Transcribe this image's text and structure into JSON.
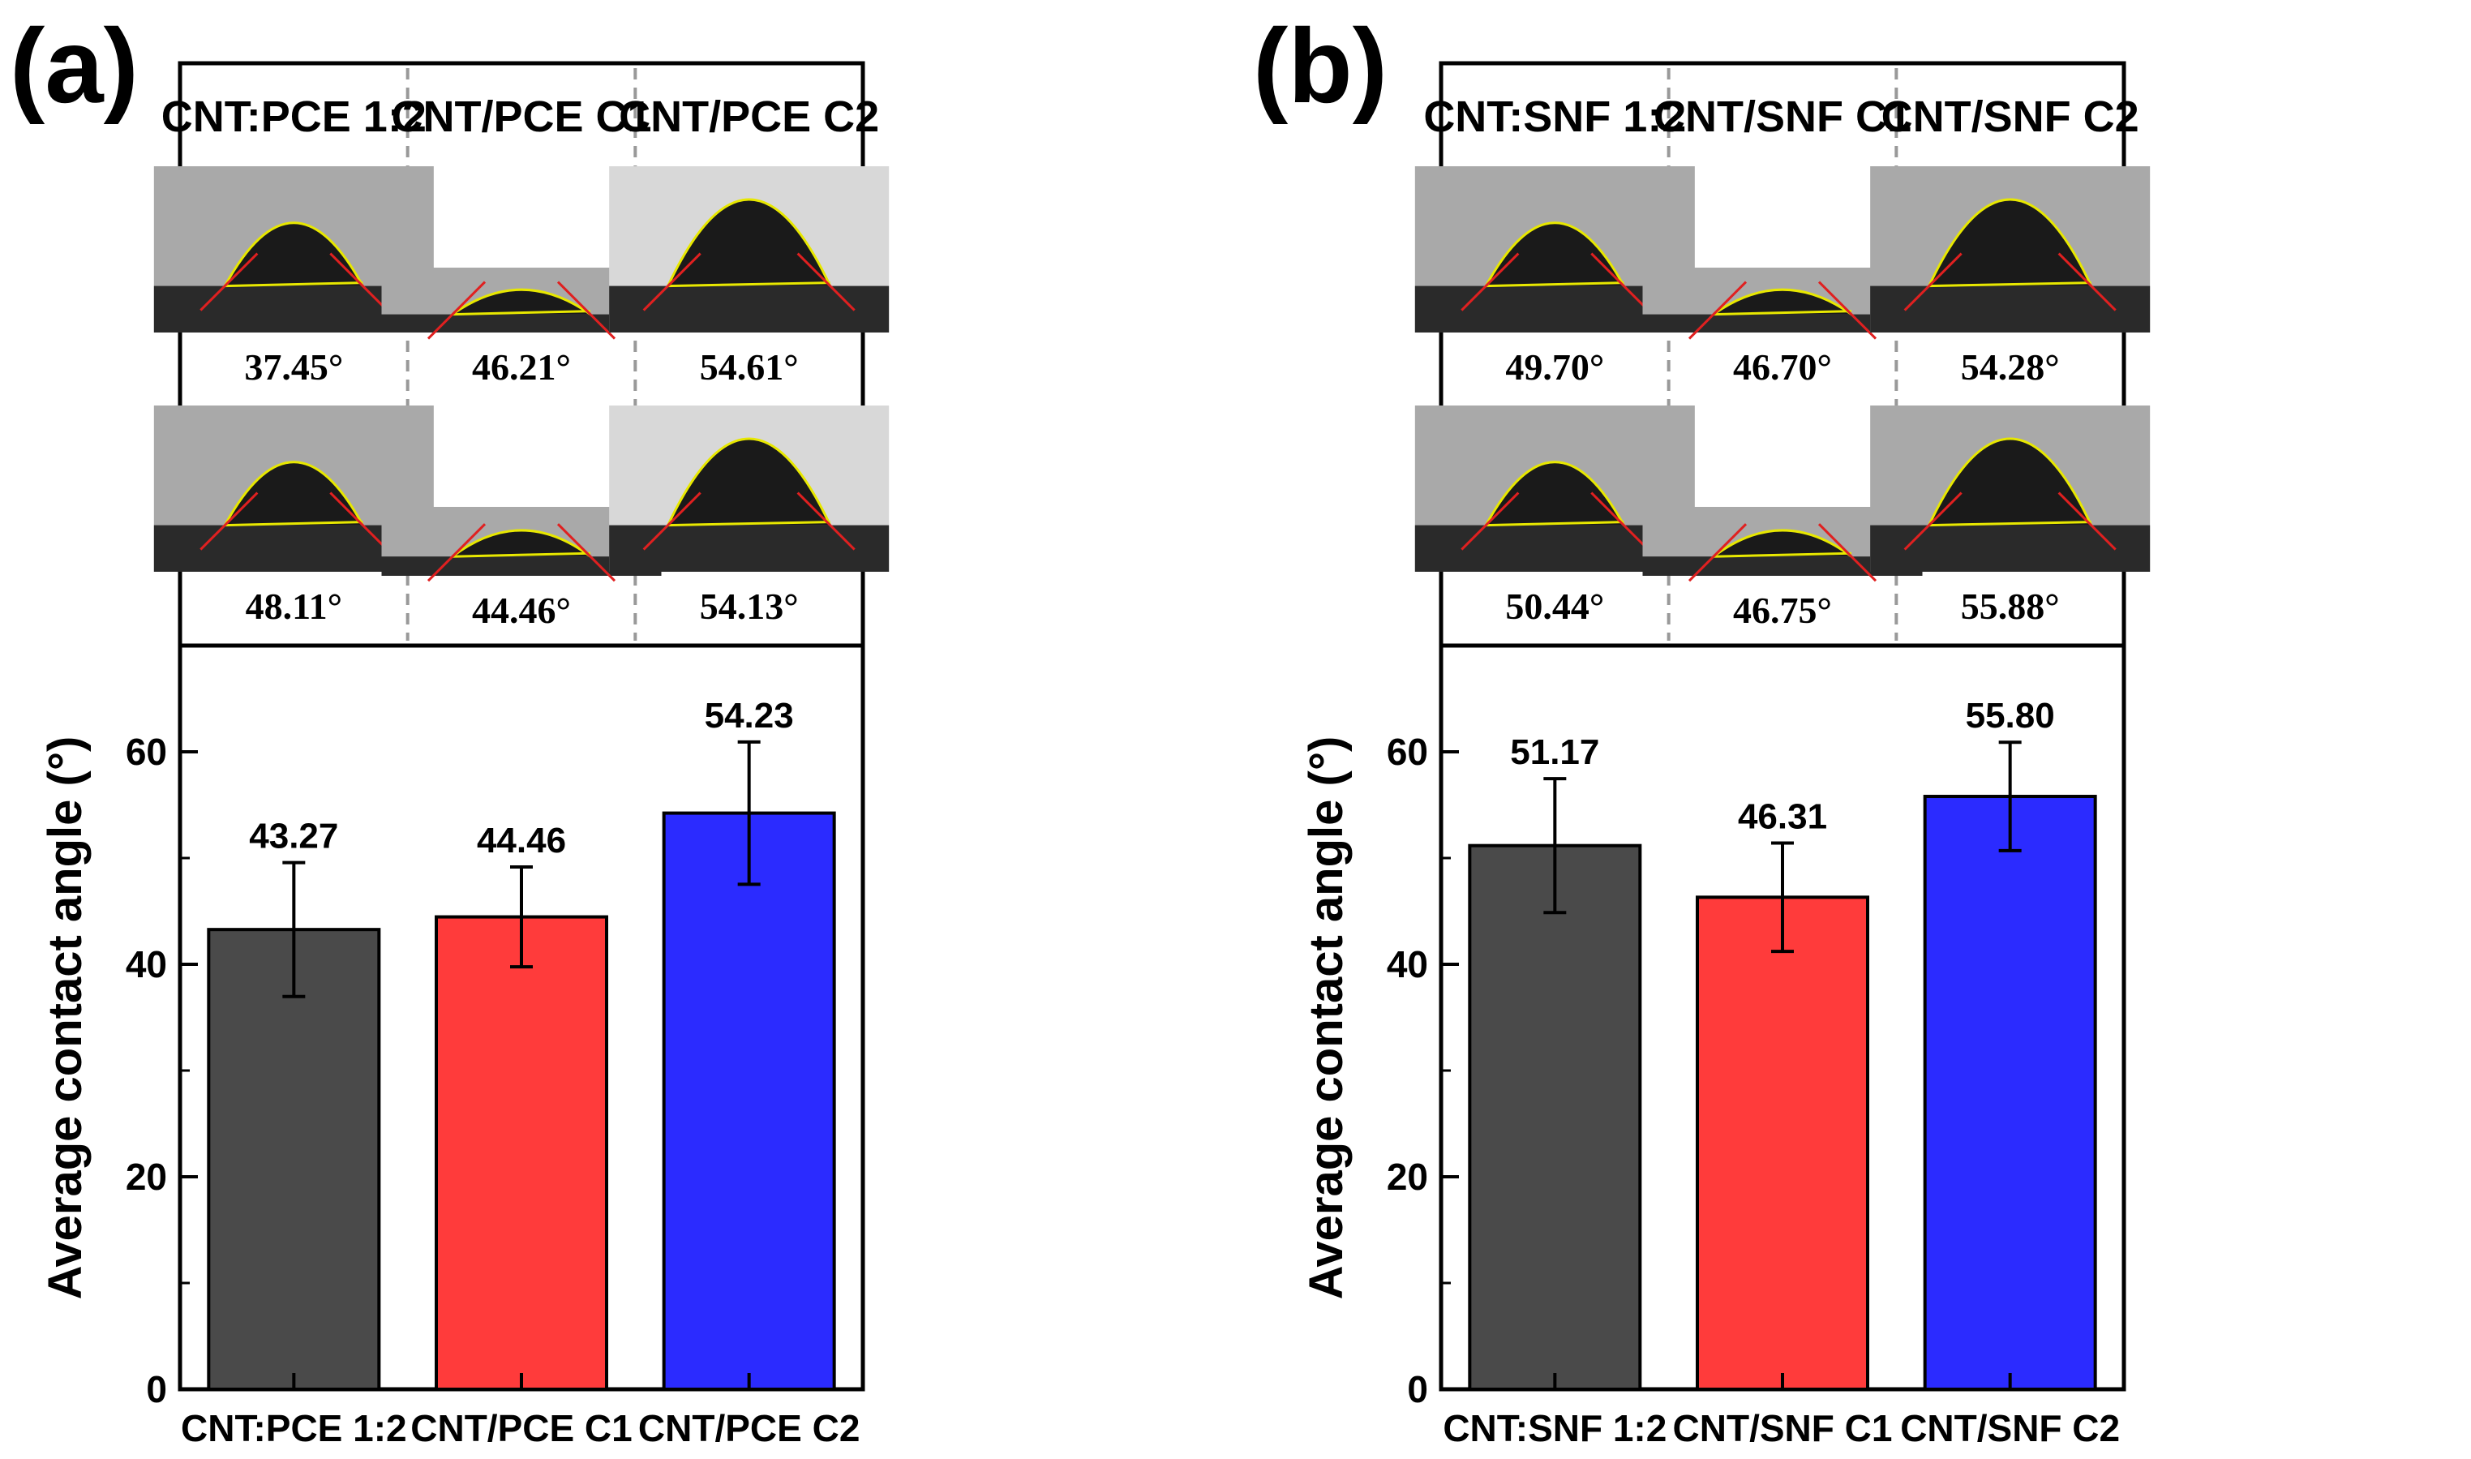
{
  "colors": {
    "bar_gray": "#4a4a4a",
    "bar_red": "#ff3b3b",
    "bar_blue": "#2b2bff",
    "fit_curve": "#e8e800",
    "tangent_line": "#e02020",
    "divider": "#999999"
  },
  "panels": [
    {
      "letter": "(a)",
      "photo_columns": [
        {
          "title": "CNT:PCE 1:2",
          "angles": [
            "37.45°",
            "48.11°"
          ]
        },
        {
          "title": "CNT/PCE C1",
          "angles": [
            "46.21°",
            "44.46°"
          ]
        },
        {
          "title": "CNT/PCE C2",
          "angles": [
            "54.61°",
            "54.13°"
          ]
        }
      ]
    },
    {
      "letter": "(b)",
      "photo_columns": [
        {
          "title": "CNT:SNF 1:2",
          "angles": [
            "49.70°",
            "50.44°"
          ]
        },
        {
          "title": "CNT/SNF C1",
          "angles": [
            "46.70°",
            "46.75°"
          ]
        },
        {
          "title": "CNT/SNF C2",
          "angles": [
            "54.28°",
            "55.88°"
          ]
        }
      ]
    }
  ],
  "chart_data": [
    {
      "type": "bar",
      "ylabel": "Average contact angle (°)",
      "ylim": [
        0,
        70
      ],
      "yticks": [
        0,
        20,
        40,
        60
      ],
      "categories": [
        "CNT:PCE 1:2",
        "CNT/PCE C1",
        "CNT/PCE C2"
      ],
      "values": [
        43.27,
        44.46,
        54.23
      ],
      "value_labels": [
        "43.27",
        "44.46",
        "54.23"
      ],
      "error": [
        6.3,
        4.7,
        6.7
      ],
      "bar_colors": [
        "#4a4a4a",
        "#ff3b3b",
        "#2b2bff"
      ]
    },
    {
      "type": "bar",
      "ylabel": "Average contact angle (°)",
      "ylim": [
        0,
        70
      ],
      "yticks": [
        0,
        20,
        40,
        60
      ],
      "categories": [
        "CNT:SNF 1:2",
        "CNT/SNF C1",
        "CNT/SNF C2"
      ],
      "values": [
        51.17,
        46.31,
        55.8
      ],
      "value_labels": [
        "51.17",
        "46.31",
        "55.80"
      ],
      "error": [
        6.3,
        5.1,
        5.1
      ],
      "bar_colors": [
        "#4a4a4a",
        "#ff3b3b",
        "#2b2bff"
      ]
    }
  ]
}
